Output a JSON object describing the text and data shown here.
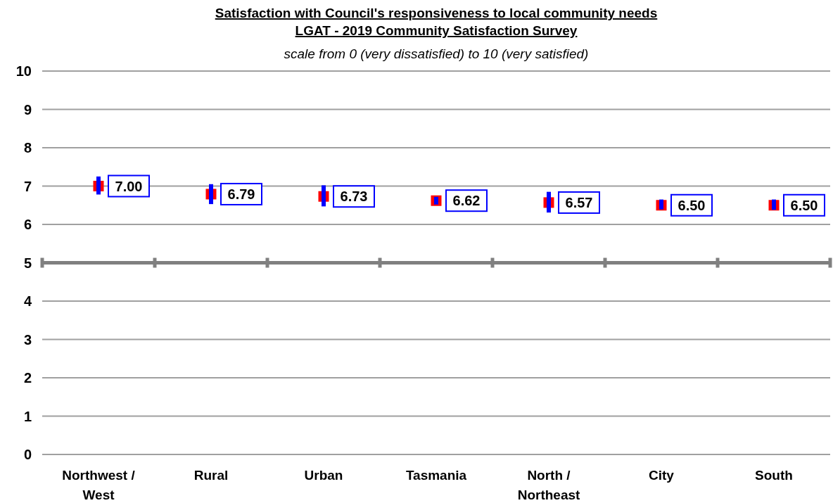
{
  "chart_data": {
    "type": "scatter",
    "title": "Satisfaction with Council's responsiveness to local community needs",
    "subtitle": "LGAT - 2019 Community Satisfaction Survey",
    "annotations": [
      "scale from 0 (very dissatisfied) to 10 (very satisfied)"
    ],
    "categories": [
      "Northwest / West",
      "Rural",
      "Urban",
      "Tasmania",
      "North / Northeast",
      "City",
      "South"
    ],
    "series": [
      {
        "color": "#ff0000",
        "values": [
          7.0,
          6.79,
          6.73,
          6.62,
          6.57,
          6.5,
          6.5
        ],
        "value_labels": [
          "7.00",
          "6.79",
          "6.73",
          "6.62",
          "6.57",
          "6.50",
          "6.50"
        ],
        "errors": [
          [
            6.78,
            7.25
          ],
          [
            6.53,
            7.05
          ],
          [
            6.47,
            7.02
          ],
          [
            6.52,
            6.72
          ],
          [
            6.31,
            6.85
          ],
          [
            6.39,
            6.65
          ],
          [
            6.38,
            6.65
          ]
        ]
      }
    ],
    "ylim": [
      0,
      10
    ],
    "yticks": [
      0,
      1,
      2,
      3,
      4,
      5,
      6,
      7,
      8,
      9,
      10
    ],
    "grid": "y",
    "marker": "square",
    "ref_lines": [
      {
        "axis": "y",
        "value": 5,
        "color": "#808080"
      }
    ]
  }
}
